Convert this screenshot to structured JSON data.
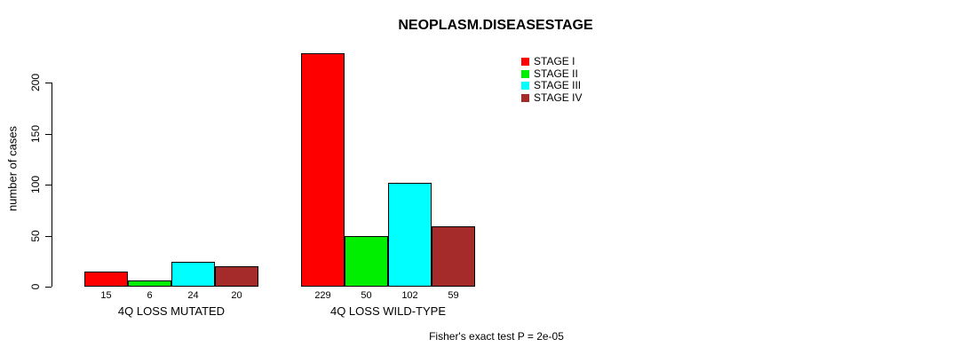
{
  "chart_data": {
    "type": "bar",
    "title": "NEOPLASM.DISEASESTAGE",
    "ylabel": "number of cases",
    "ylim": [
      0,
      230
    ],
    "yticks": [
      0,
      50,
      100,
      150,
      200
    ],
    "grid": false,
    "legend_position": "top-right",
    "categories": [
      "4Q LOSS MUTATED",
      "4Q LOSS WILD-TYPE"
    ],
    "series": [
      {
        "name": "STAGE I",
        "color": "#FF0000",
        "values": [
          15,
          229
        ]
      },
      {
        "name": "STAGE II",
        "color": "#00EE00",
        "values": [
          6,
          50
        ]
      },
      {
        "name": "STAGE III",
        "color": "#00FFFF",
        "values": [
          24,
          102
        ]
      },
      {
        "name": "STAGE IV",
        "color": "#A52A2A",
        "values": [
          20,
          59
        ]
      }
    ],
    "bar_value_labels": {
      "4Q LOSS MUTATED": [
        "15",
        "6",
        "24",
        "20"
      ],
      "4Q LOSS WILD-TYPE": [
        "229",
        "50",
        "102",
        "59"
      ]
    },
    "annotation": "Fisher's exact test P = 2e-05"
  }
}
